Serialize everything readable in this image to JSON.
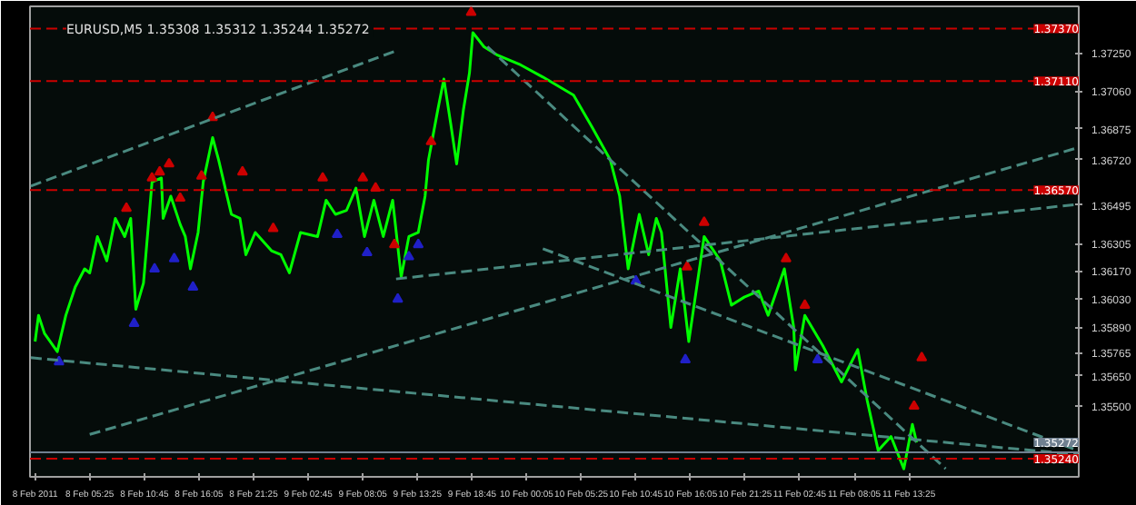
{
  "chart_data": {
    "type": "line",
    "title": "EURUSD,M5  1.35308 1.35312 1.35244 1.35272",
    "xlim": [
      "2011-02-07T23:35",
      "2011-02-12T06:00"
    ],
    "ylim": [
      1.3515,
      1.3748
    ],
    "xticks": [
      {
        "value": "2011-02-08T00:05",
        "label": "8 Feb 2011"
      },
      {
        "value": "2011-02-08T05:25",
        "label": "8 Feb 05:25"
      },
      {
        "value": "2011-02-08T10:45",
        "label": "8 Feb 10:45"
      },
      {
        "value": "2011-02-08T16:05",
        "label": "8 Feb 16:05"
      },
      {
        "value": "2011-02-08T21:25",
        "label": "8 Feb 21:25"
      },
      {
        "value": "2011-02-09T02:45",
        "label": "9 Feb 02:45"
      },
      {
        "value": "2011-02-09T08:05",
        "label": "9 Feb 08:05"
      },
      {
        "value": "2011-02-09T13:25",
        "label": "9 Feb 13:25"
      },
      {
        "value": "2011-02-09T18:45",
        "label": "9 Feb 18:45"
      },
      {
        "value": "2011-02-10T00:05",
        "label": "10 Feb 00:05"
      },
      {
        "value": "2011-02-10T05:25",
        "label": "10 Feb 05:25"
      },
      {
        "value": "2011-02-10T10:45",
        "label": "10 Feb 10:45"
      },
      {
        "value": "2011-02-10T16:05",
        "label": "10 Feb 16:05"
      },
      {
        "value": "2011-02-10T21:25",
        "label": "10 Feb 21:25"
      },
      {
        "value": "2011-02-11T02:45",
        "label": "11 Feb 02:45"
      },
      {
        "value": "2011-02-11T08:05",
        "label": "11 Feb 08:05"
      },
      {
        "value": "2011-02-11T13:25",
        "label": "11 Feb 13:25"
      }
    ],
    "yticks": [
      {
        "value": 1.3725,
        "label": "1.37250"
      },
      {
        "value": 1.3706,
        "label": "1.37060"
      },
      {
        "value": 1.36875,
        "label": "1.36875"
      },
      {
        "value": 1.3672,
        "label": "1.36720"
      },
      {
        "value": 1.36495,
        "label": "1.36495"
      },
      {
        "value": 1.36305,
        "label": "1.36305"
      },
      {
        "value": 1.3617,
        "label": "1.36170"
      },
      {
        "value": 1.3603,
        "label": "1.36030"
      },
      {
        "value": 1.3589,
        "label": "1.35890"
      },
      {
        "value": 1.35765,
        "label": "1.35765"
      },
      {
        "value": 1.3565,
        "label": "1.35650"
      },
      {
        "value": 1.355,
        "label": "1.35500"
      }
    ],
    "grid": false,
    "series": [
      {
        "color": "#00ff00",
        "line_style": "solid",
        "marker": "none",
        "x": [
          "2011-02-08T00:05",
          "2011-02-08T00:25",
          "2011-02-08T01:00",
          "2011-02-08T02:15",
          "2011-02-08T03:05",
          "2011-02-08T04:00",
          "2011-02-08T04:55",
          "2011-02-08T05:25",
          "2011-02-08T06:10",
          "2011-02-08T07:05",
          "2011-02-08T07:55",
          "2011-02-08T08:50",
          "2011-02-08T09:25",
          "2011-02-08T09:55",
          "2011-02-08T10:40",
          "2011-02-08T11:30",
          "2011-02-08T12:25",
          "2011-02-08T12:35",
          "2011-02-08T13:20",
          "2011-02-08T14:15",
          "2011-02-08T14:45",
          "2011-02-08T15:15",
          "2011-02-08T16:00",
          "2011-02-08T16:30",
          "2011-02-08T17:25",
          "2011-02-08T18:00",
          "2011-02-08T19:15",
          "2011-02-08T20:05",
          "2011-02-08T20:40",
          "2011-02-08T21:35",
          "2011-02-08T23:10",
          "2011-02-09T00:05",
          "2011-02-09T00:55",
          "2011-02-09T02:00",
          "2011-02-09T03:40",
          "2011-02-09T04:30",
          "2011-02-09T05:25",
          "2011-02-09T06:30",
          "2011-02-09T07:25",
          "2011-02-09T08:15",
          "2011-02-09T09:10",
          "2011-02-09T10:05",
          "2011-02-09T11:00",
          "2011-02-09T11:50",
          "2011-02-09T12:35",
          "2011-02-09T13:30",
          "2011-02-09T14:10",
          "2011-02-09T14:30",
          "2011-02-09T15:25",
          "2011-02-09T16:00",
          "2011-02-09T16:40",
          "2011-02-09T17:15",
          "2011-02-09T17:55",
          "2011-02-09T18:30",
          "2011-02-09T18:50",
          "2011-02-09T19:55",
          "2011-02-09T21:10",
          "2011-02-09T23:30",
          "2011-02-10T01:40",
          "2011-02-10T04:40",
          "2011-02-10T06:30",
          "2011-02-10T08:15",
          "2011-02-10T09:10",
          "2011-02-10T10:00",
          "2011-02-10T11:05",
          "2011-02-10T12:00",
          "2011-02-10T12:45",
          "2011-02-10T13:15",
          "2011-02-10T14:10",
          "2011-02-10T15:05",
          "2011-02-10T15:55",
          "2011-02-10T17:25",
          "2011-02-10T19:00",
          "2011-02-10T20:05",
          "2011-02-10T21:20",
          "2011-02-10T22:45",
          "2011-02-10T23:40",
          "2011-02-11T01:15",
          "2011-02-11T02:10",
          "2011-02-11T02:20",
          "2011-02-11T03:15",
          "2011-02-11T05:00",
          "2011-02-11T06:50",
          "2011-02-11T08:25",
          "2011-02-11T09:20",
          "2011-02-11T10:25",
          "2011-02-11T11:40",
          "2011-02-11T12:55",
          "2011-02-11T13:45",
          "2011-02-11T14:10"
        ],
        "values": [
          1.3582,
          1.3595,
          1.3586,
          1.3577,
          1.3595,
          1.3609,
          1.3618,
          1.3616,
          1.3634,
          1.3622,
          1.3643,
          1.3634,
          1.3643,
          1.3598,
          1.3611,
          1.3661,
          1.3663,
          1.3643,
          1.3654,
          1.364,
          1.3634,
          1.3618,
          1.3636,
          1.3661,
          1.3683,
          1.3672,
          1.3645,
          1.3643,
          1.3625,
          1.3636,
          1.3627,
          1.3625,
          1.3616,
          1.3636,
          1.3634,
          1.3652,
          1.3645,
          1.3647,
          1.3658,
          1.3634,
          1.3652,
          1.3634,
          1.3652,
          1.3614,
          1.3634,
          1.3636,
          1.3654,
          1.3672,
          1.3697,
          1.3712,
          1.369,
          1.367,
          1.3697,
          1.3715,
          1.3735,
          1.3728,
          1.3724,
          1.3719,
          1.3713,
          1.3704,
          1.3688,
          1.3672,
          1.3654,
          1.3618,
          1.3645,
          1.3625,
          1.3643,
          1.3636,
          1.3589,
          1.3618,
          1.3582,
          1.3634,
          1.3622,
          1.36,
          1.3604,
          1.3607,
          1.3595,
          1.3618,
          1.3589,
          1.3568,
          1.3595,
          1.358,
          1.3562,
          1.3578,
          1.3553,
          1.3528,
          1.3535,
          1.3519,
          1.3541,
          1.3532
        ]
      },
      {
        "type": "scatter",
        "color": "#cc0000",
        "marker": "triangle",
        "x": [
          "2011-02-08T09:00",
          "2011-02-08T11:30",
          "2011-02-08T12:15",
          "2011-02-08T13:10",
          "2011-02-08T14:15",
          "2011-02-08T16:20",
          "2011-02-08T17:25",
          "2011-02-08T20:20",
          "2011-02-08T23:20",
          "2011-02-09T04:10",
          "2011-02-09T08:05",
          "2011-02-09T09:20",
          "2011-02-09T11:10",
          "2011-02-09T14:45",
          "2011-02-09T18:40",
          "2011-02-10T15:45",
          "2011-02-10T17:25",
          "2011-02-11T01:25",
          "2011-02-11T03:15",
          "2011-02-11T13:55",
          "2011-02-11T14:40"
        ],
        "values": [
          1.3648,
          1.3663,
          1.3666,
          1.367,
          1.3653,
          1.3664,
          1.3693,
          1.3666,
          1.3638,
          1.3663,
          1.3663,
          1.3658,
          1.363,
          1.3681,
          1.3745,
          1.3619,
          1.3641,
          1.3623,
          1.36,
          1.355,
          1.3574
        ]
      },
      {
        "type": "scatter",
        "color": "#2020c8",
        "marker": "triangle",
        "x": [
          "2011-02-08T02:25",
          "2011-02-08T09:45",
          "2011-02-08T11:45",
          "2011-02-08T13:40",
          "2011-02-08T15:30",
          "2011-02-09T05:35",
          "2011-02-09T08:30",
          "2011-02-09T11:30",
          "2011-02-09T12:35",
          "2011-02-09T13:30",
          "2011-02-10T10:45",
          "2011-02-10T15:35",
          "2011-02-11T04:30"
        ],
        "values": [
          1.3572,
          1.3591,
          1.3618,
          1.3623,
          1.3609,
          1.3635,
          1.3626,
          1.3603,
          1.3624,
          1.363,
          1.3612,
          1.3573,
          1.3573
        ]
      },
      {
        "type": "line",
        "color": "#4a8a80",
        "line_style": "dashed",
        "marker": "none",
        "x": [
          "2011-02-07T23:40",
          "2011-02-09T11:20"
        ],
        "values": [
          1.3659,
          1.3726
        ]
      },
      {
        "type": "line",
        "color": "#4a8a80",
        "line_style": "dashed",
        "marker": "none",
        "x": [
          "2011-02-08T05:25",
          "2011-02-12T05:55"
        ],
        "values": [
          1.3536,
          1.3678
        ]
      },
      {
        "type": "line",
        "color": "#4a8a80",
        "line_style": "dashed",
        "marker": "none",
        "x": [
          "2011-02-09T11:20",
          "2011-02-12T05:55"
        ],
        "values": [
          1.3613,
          1.365
        ]
      },
      {
        "type": "line",
        "color": "#4a8a80",
        "line_style": "dashed",
        "marker": "none",
        "x": [
          "2011-02-09T20:15",
          "2011-02-11T17:00"
        ],
        "values": [
          1.3728,
          1.3519
        ]
      },
      {
        "type": "line",
        "color": "#4a8a80",
        "line_style": "dashed",
        "marker": "none",
        "x": [
          "2011-02-07T23:40",
          "2011-02-12T05:55"
        ],
        "values": [
          1.3574,
          1.3526
        ]
      },
      {
        "type": "line",
        "color": "#4a8a80",
        "line_style": "dashed",
        "marker": "none",
        "x": [
          "2011-02-10T01:40",
          "2011-02-12T05:55"
        ],
        "values": [
          1.3628,
          1.3528
        ]
      }
    ],
    "ref_lines": [
      {
        "axis": "y",
        "value": 1.3737,
        "label": "1.37370",
        "color": "#cc0000",
        "line_style": "dashed"
      },
      {
        "axis": "y",
        "value": 1.3711,
        "label": "1.37110",
        "color": "#cc0000",
        "line_style": "dashed"
      },
      {
        "axis": "y",
        "value": 1.3657,
        "label": "1.36570",
        "color": "#cc0000",
        "line_style": "dashed"
      },
      {
        "axis": "y",
        "value": 1.3524,
        "label": "1.35240",
        "color": "#cc0000",
        "line_style": "dashed"
      },
      {
        "axis": "y",
        "value": 1.35272,
        "label": "1.35272",
        "color": "#708090",
        "line_style": "solid"
      }
    ]
  }
}
